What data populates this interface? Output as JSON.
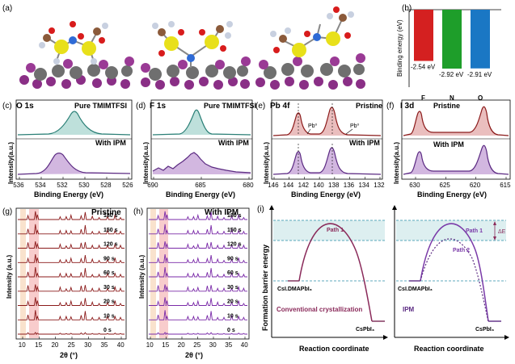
{
  "panel_labels": {
    "a": "(a)",
    "b": "(b)",
    "c": "(c)",
    "d": "(d)",
    "e": "(e)",
    "f": "(f)",
    "g": "(g)",
    "h": "(h)",
    "i": "(i)"
  },
  "common": {
    "intensity": "Intensity(a.u.)",
    "intensity_sp": "Intensity (a.u.)",
    "binding_energy": "Binding Energy (eV)",
    "two_theta": "2θ (°)",
    "pristine": "Pristine",
    "with_ipm": "With IPM",
    "pure": "Pure TMIMTFSI"
  },
  "panel_b": {
    "ylabel": "Binding energy (eV)",
    "bars": [
      {
        "name": "F",
        "value": -2.54,
        "label": "-2.54 eV",
        "color": "#d42020"
      },
      {
        "name": "N",
        "value": -2.92,
        "label": "-2.92 eV",
        "color": "#1e9e2a"
      },
      {
        "name": "O",
        "value": -2.91,
        "label": "-2.91 eV",
        "color": "#1a77c4"
      }
    ],
    "ylim": [
      -3.2,
      0
    ]
  },
  "panel_c": {
    "title": "O 1s",
    "ticks": [
      "536",
      "534",
      "532",
      "530",
      "528",
      "526"
    ]
  },
  "panel_d": {
    "title": "F 1s",
    "ticks": [
      "690",
      "685",
      "680"
    ]
  },
  "panel_e": {
    "title": "Pb 4f",
    "ticks": [
      "146",
      "144",
      "142",
      "140",
      "138",
      "136",
      "134",
      "132"
    ],
    "pb0a": "Pb⁰",
    "pb0b": "Pb⁰"
  },
  "panel_f": {
    "title": "I 3d",
    "ticks": [
      "630",
      "625",
      "620",
      "615"
    ]
  },
  "panel_g": {
    "times": [
      "180 s",
      "150 s",
      "120 s",
      "90 s",
      "60 s",
      "30 s",
      "20 s",
      "10 s",
      "0 s"
    ],
    "ticks": [
      "10",
      "15",
      "20",
      "25",
      "30",
      "35",
      "40"
    ]
  },
  "panel_h": {
    "times": [
      "180 s",
      "150 s",
      "120 s",
      "90 s",
      "60 s",
      "30 s",
      "20 s",
      "10 s",
      "0 s"
    ],
    "ticks": [
      "10",
      "15",
      "20",
      "25",
      "30",
      "35",
      "40"
    ]
  },
  "panel_i": {
    "ylabel": "Formation barrier energy",
    "xlabel": "Reaction coordinate",
    "left_start": "CsI.DMAPbI₃",
    "left_end": "CsPbI₃",
    "left_caption": "Conventional crystallization",
    "left_path": "Path 1",
    "right_start": "CsI.DMAPbI₃",
    "right_end": "CsPbI₃",
    "right_caption": "IPM",
    "right_path1": "Path 1",
    "right_path2": "Path 2",
    "delta": "ΔE"
  }
}
